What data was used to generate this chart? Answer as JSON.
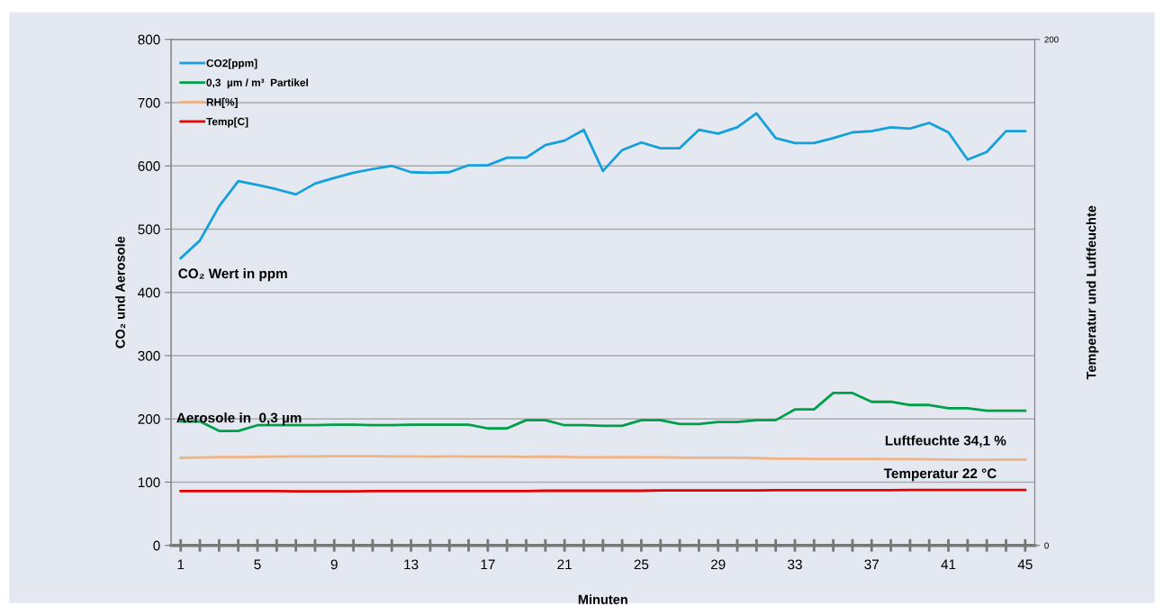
{
  "chart_data": {
    "type": "line",
    "xlabel": "Minuten",
    "ylabel": "CO₂ und Aerosole",
    "y2label": "Temperatur und Luftfeuchte",
    "x": [
      1,
      2,
      3,
      4,
      5,
      6,
      7,
      8,
      9,
      10,
      11,
      12,
      13,
      14,
      15,
      16,
      17,
      18,
      19,
      20,
      21,
      22,
      23,
      24,
      25,
      26,
      27,
      28,
      29,
      30,
      31,
      32,
      33,
      34,
      35,
      36,
      37,
      38,
      39,
      40,
      41,
      42,
      43,
      44,
      45
    ],
    "xlim": [
      0.5,
      45.5
    ],
    "xticks": [
      1,
      {
        "value": 2,
        "label": null
      },
      {
        "value": 3,
        "label": null
      },
      {
        "value": 4,
        "label": null
      },
      5,
      {
        "value": 6,
        "label": null
      },
      {
        "value": 7,
        "label": null
      },
      {
        "value": 8,
        "label": null
      },
      9,
      {
        "value": 10,
        "label": null
      },
      {
        "value": 11,
        "label": null
      },
      {
        "value": 12,
        "label": null
      },
      13,
      {
        "value": 14,
        "label": null
      },
      {
        "value": 15,
        "label": null
      },
      {
        "value": 16,
        "label": null
      },
      17,
      {
        "value": 18,
        "label": null
      },
      {
        "value": 19,
        "label": null
      },
      {
        "value": 20,
        "label": null
      },
      21,
      {
        "value": 22,
        "label": null
      },
      {
        "value": 23,
        "label": null
      },
      {
        "value": 24,
        "label": null
      },
      25,
      {
        "value": 26,
        "label": null
      },
      {
        "value": 27,
        "label": null
      },
      {
        "value": 28,
        "label": null
      },
      29,
      {
        "value": 30,
        "label": null
      },
      {
        "value": 31,
        "label": null
      },
      {
        "value": 32,
        "label": null
      },
      33,
      {
        "value": 34,
        "label": null
      },
      {
        "value": 35,
        "label": null
      },
      {
        "value": 36,
        "label": null
      },
      37,
      {
        "value": 38,
        "label": null
      },
      {
        "value": 39,
        "label": null
      },
      {
        "value": 40,
        "label": null
      },
      41,
      {
        "value": 42,
        "label": null
      },
      {
        "value": 43,
        "label": null
      },
      {
        "value": 44,
        "label": null
      },
      45
    ],
    "ylim": [
      0,
      800
    ],
    "yticks": [
      0,
      100,
      200,
      300,
      400,
      500,
      600,
      700,
      800
    ],
    "y2lim": [
      0,
      200
    ],
    "y2ticks": [
      0,
      200
    ],
    "grid": "y",
    "legend": "top left",
    "marker": "none",
    "line_style": "solid",
    "series": [
      {
        "name": "CO2[ppm]",
        "color": "#14a0dc",
        "values": [
          454,
          482,
          536,
          576,
          570,
          563,
          555,
          572,
          581,
          589,
          595,
          600,
          590,
          589,
          590,
          601,
          601,
          613,
          613,
          633,
          640,
          657,
          592,
          625,
          637,
          628,
          628,
          657,
          651,
          661,
          683,
          644,
          636,
          636,
          644,
          653,
          655,
          661,
          659,
          668,
          653,
          610,
          622,
          655,
          655
        ]
      },
      {
        "name": "0,3  µm / m³  Partikel",
        "color": "#00a04a",
        "values": [
          196,
          196,
          181,
          181,
          190,
          190,
          190,
          190,
          191,
          191,
          190,
          190,
          191,
          191,
          191,
          191,
          185,
          185,
          198,
          198,
          190,
          190,
          189,
          189,
          198,
          198,
          192,
          192,
          195,
          195,
          198,
          198,
          215,
          215,
          241,
          241,
          227,
          227,
          222,
          222,
          217,
          217,
          213,
          213,
          213
        ]
      },
      {
        "name": "RH[%]",
        "color": "#f0b484",
        "axis": "y2",
        "values": [
          34.6,
          34.7,
          34.9,
          34.9,
          35.0,
          35.1,
          35.2,
          35.2,
          35.3,
          35.3,
          35.3,
          35.2,
          35.2,
          35.1,
          35.2,
          35.1,
          35.1,
          35.1,
          35.0,
          35.1,
          35.0,
          34.8,
          34.8,
          34.9,
          34.8,
          34.8,
          34.7,
          34.6,
          34.6,
          34.6,
          34.5,
          34.3,
          34.3,
          34.2,
          34.2,
          34.2,
          34.2,
          34.1,
          34.1,
          34.0,
          33.9,
          33.8,
          33.8,
          33.9,
          33.9
        ]
      },
      {
        "name": "Temp[C]",
        "color": "#e60000",
        "axis": "y2",
        "values": [
          21.5,
          21.5,
          21.5,
          21.5,
          21.5,
          21.5,
          21.4,
          21.4,
          21.4,
          21.4,
          21.5,
          21.5,
          21.5,
          21.5,
          21.5,
          21.5,
          21.5,
          21.5,
          21.5,
          21.6,
          21.6,
          21.6,
          21.6,
          21.6,
          21.6,
          21.7,
          21.7,
          21.7,
          21.7,
          21.7,
          21.7,
          21.8,
          21.8,
          21.8,
          21.8,
          21.8,
          21.8,
          21.8,
          21.9,
          21.9,
          21.9,
          21.9,
          21.9,
          21.9,
          21.9
        ]
      }
    ],
    "annotations": [
      "CO₂ Wert in ppm",
      "Aerosole in  0,3 µm",
      "Luftfeuchte 34,1 %",
      "Temperatur 22 °C"
    ]
  }
}
